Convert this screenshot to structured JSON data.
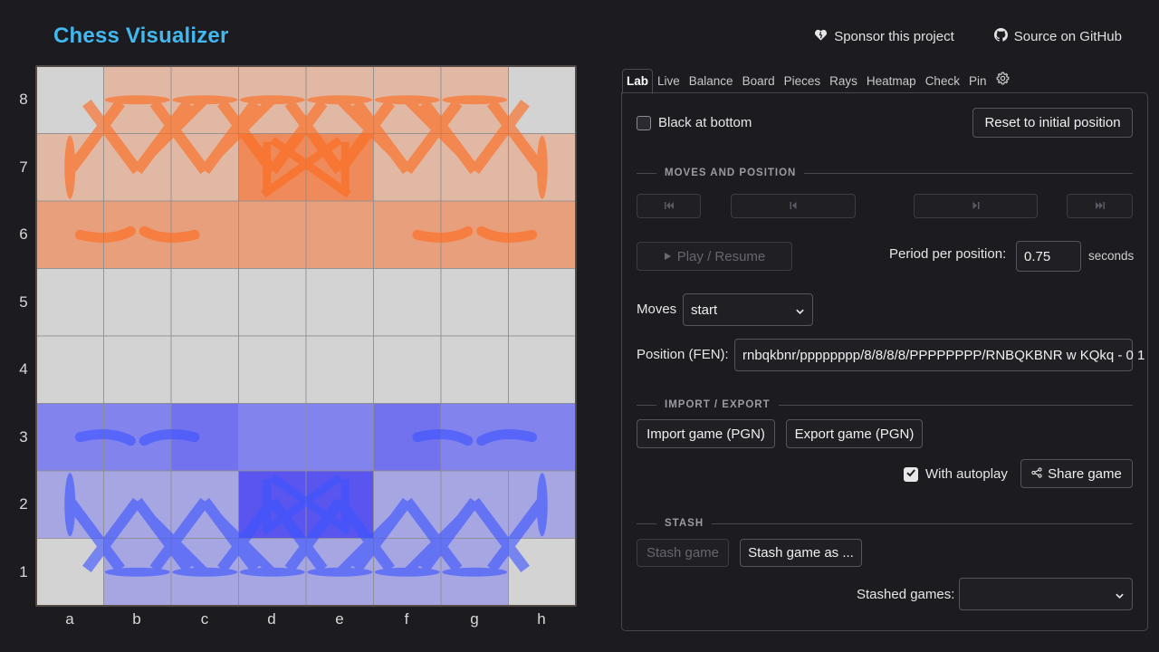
{
  "app": {
    "title": "Chess Visualizer",
    "sponsor_label": "Sponsor this project",
    "github_label": "Source on GitHub"
  },
  "board": {
    "ranks": [
      "8",
      "7",
      "6",
      "5",
      "4",
      "3",
      "2",
      "1"
    ],
    "files": [
      "a",
      "b",
      "c",
      "d",
      "e",
      "f",
      "g",
      "h"
    ],
    "colors": {
      "light_square": "#d3d3d3",
      "black_control_light": "#e0b8a4",
      "black_control_medium": "#e8a07c",
      "black_control_strong": "#ef8a5a",
      "white_control_light": "#a6a6e2",
      "white_control_medium": "#8383ee",
      "white_control_strong": "#5a55ee",
      "black_ray": "#ff6a1e",
      "white_ray": "#3d55ff"
    }
  },
  "tabs": [
    {
      "label": "Lab",
      "active": true
    },
    {
      "label": "Live"
    },
    {
      "label": "Balance"
    },
    {
      "label": "Board"
    },
    {
      "label": "Pieces"
    },
    {
      "label": "Rays"
    },
    {
      "label": "Heatmap"
    },
    {
      "label": "Check"
    },
    {
      "label": "Pin"
    }
  ],
  "lab": {
    "black_at_bottom": {
      "label": "Black at bottom",
      "checked": false
    },
    "reset_label": "Reset to initial position",
    "moves_section": "MOVES AND POSITION",
    "play_label": "Play / Resume",
    "period_label": "Period per position:",
    "period_value": "0.75",
    "period_unit": "seconds",
    "moves_label": "Moves",
    "moves_selected": "start",
    "fen_label": "Position (FEN):",
    "fen_value": "rnbqkbnr/pppppppp/8/8/8/8/PPPPPPPP/RNBQKBNR w KQkq - 0 1",
    "import_export_section": "IMPORT / EXPORT",
    "import_label": "Import game (PGN)",
    "export_label": "Export game (PGN)",
    "autoplay": {
      "label": "With autoplay",
      "checked": true
    },
    "share_label": "Share game",
    "stash_section": "STASH",
    "stash_label": "Stash game",
    "stash_as_label": "Stash game as ...",
    "stashed_label": "Stashed games:",
    "stashed_selected": ""
  }
}
